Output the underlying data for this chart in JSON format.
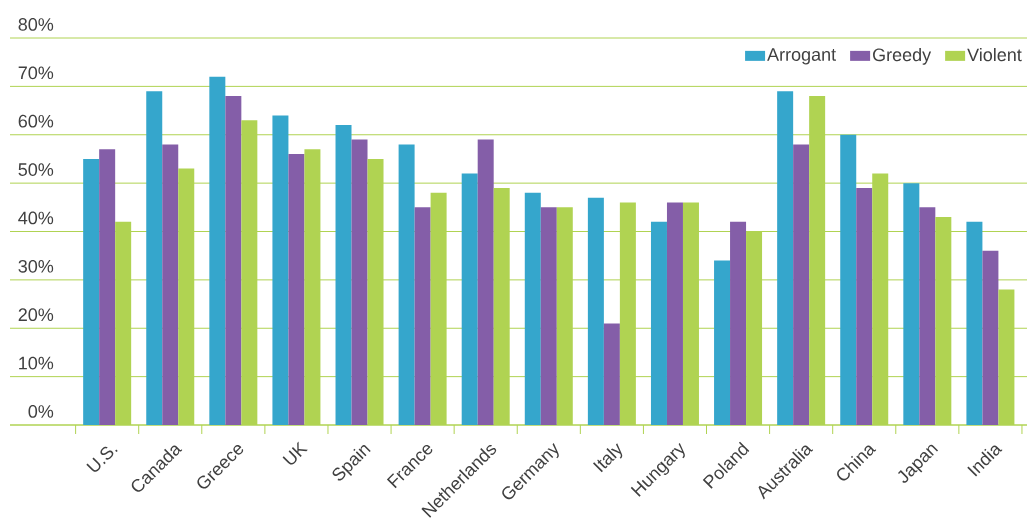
{
  "chart_data": {
    "type": "bar",
    "categories": [
      "U.S.",
      "Canada",
      "Greece",
      "UK",
      "Spain",
      "France",
      "Netherlands",
      "Germany",
      "Italy",
      "Hungary",
      "Poland",
      "Australia",
      "China",
      "Japan",
      "India"
    ],
    "series": [
      {
        "name": "Arrogant",
        "color": "#35a6cc",
        "values": [
          55,
          69,
          72,
          64,
          62,
          58,
          52,
          48,
          47,
          42,
          34,
          69,
          60,
          50,
          42
        ]
      },
      {
        "name": "Greedy",
        "color": "#845ea8",
        "values": [
          57,
          58,
          68,
          56,
          59,
          45,
          59,
          45,
          21,
          46,
          42,
          58,
          49,
          45,
          36
        ]
      },
      {
        "name": "Violent",
        "color": "#b0d352",
        "values": [
          42,
          53,
          63,
          57,
          55,
          48,
          49,
          45,
          46,
          46,
          40,
          68,
          52,
          43,
          28
        ]
      }
    ],
    "ylim": [
      0,
      80
    ],
    "yticks": [
      {
        "value": 0,
        "label": "0%"
      },
      {
        "value": 10,
        "label": "10%"
      },
      {
        "value": 20,
        "label": "20%"
      },
      {
        "value": 30,
        "label": "30%"
      },
      {
        "value": 40,
        "label": "40%"
      },
      {
        "value": 50,
        "label": "50%"
      },
      {
        "value": 60,
        "label": "60%"
      },
      {
        "value": 70,
        "label": "70%"
      },
      {
        "value": 80,
        "label": "80%"
      }
    ],
    "grid": "y",
    "legend": "top right"
  }
}
